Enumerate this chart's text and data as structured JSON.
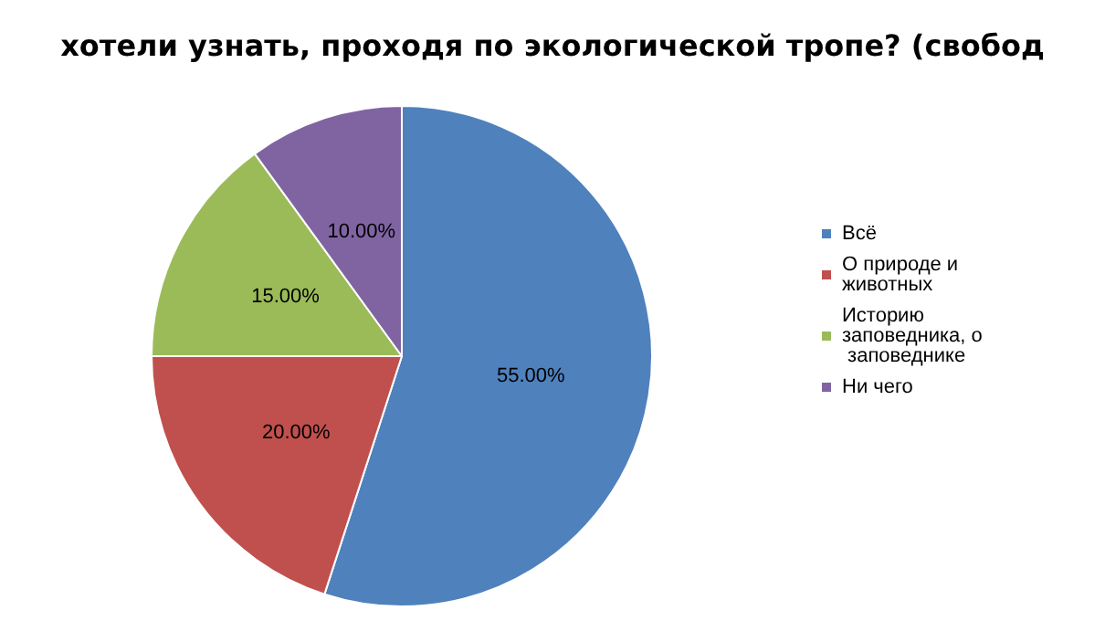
{
  "chart_data": {
    "type": "pie",
    "title": "хотели узнать, проходя по экологической тропе? (свобод",
    "categories": [
      "Всё",
      "О природе и животных",
      "Историю заповедника, о заповеднике",
      "Ни чего"
    ],
    "values": [
      55,
      20,
      15,
      10
    ],
    "colors": [
      "#4f81bd",
      "#c0504d",
      "#9bbb59",
      "#8064a2"
    ],
    "value_labels": [
      "55.00%",
      "20.00%",
      "15.00%",
      "10.00%"
    ],
    "legend": "right"
  }
}
